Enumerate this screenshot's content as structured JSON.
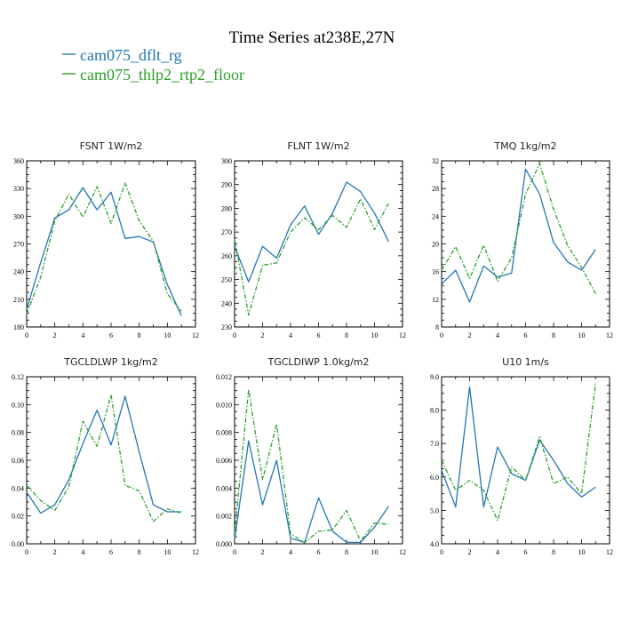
{
  "title": "Time Series at238E,27N",
  "legend": [
    {
      "label": "cam075_dflt_rg",
      "color": "#2377b4",
      "dash": "solid"
    },
    {
      "label": "cam075_thlp2_rtp2_floor",
      "color": "#2ca02c",
      "dash": "dashdot"
    }
  ],
  "chart_data": [
    {
      "type": "line",
      "title": "FSNT   1W/m2",
      "x": [
        0,
        1,
        2,
        3,
        4,
        5,
        6,
        7,
        8,
        9,
        10,
        11
      ],
      "xlim": [
        0,
        12
      ],
      "xticks": [
        "0",
        "2",
        "4",
        "6",
        "8",
        "10",
        "12"
      ],
      "ylim": [
        180,
        360
      ],
      "yticks": [
        "180",
        "210",
        "240",
        "270",
        "300",
        "330",
        "360"
      ],
      "series": [
        {
          "name": "cam075_dflt_rg",
          "values": [
            199,
            250,
            298,
            307,
            331,
            307,
            326,
            276,
            278,
            272,
            226,
            192
          ]
        },
        {
          "name": "cam075_thlp2_rtp2_floor",
          "values": [
            194,
            234,
            295,
            324,
            299,
            332,
            292,
            336,
            295,
            273,
            216,
            197
          ]
        }
      ]
    },
    {
      "type": "line",
      "title": "FLNT   1W/m2",
      "x": [
        0,
        1,
        2,
        3,
        4,
        5,
        6,
        7,
        8,
        9,
        10,
        11
      ],
      "xlim": [
        0,
        12
      ],
      "xticks": [
        "0",
        "2",
        "4",
        "6",
        "8",
        "10",
        "12"
      ],
      "ylim": [
        230,
        300
      ],
      "yticks": [
        "230",
        "240",
        "250",
        "260",
        "270",
        "280",
        "290",
        "300"
      ],
      "series": [
        {
          "name": "cam075_dflt_rg",
          "values": [
            264,
            249,
            264,
            259,
            273,
            281,
            269,
            278,
            291,
            287,
            278,
            266
          ]
        },
        {
          "name": "cam075_thlp2_rtp2_floor",
          "values": [
            267,
            235,
            256,
            257,
            270,
            276,
            271,
            277,
            272,
            284,
            271,
            282
          ]
        }
      ]
    },
    {
      "type": "line",
      "title": "TMQ   1kg/m2",
      "x": [
        0,
        1,
        2,
        3,
        4,
        5,
        6,
        7,
        8,
        9,
        10,
        11
      ],
      "xlim": [
        0,
        12
      ],
      "xticks": [
        "0",
        "2",
        "4",
        "6",
        "8",
        "10",
        "12"
      ],
      "ylim": [
        8,
        32
      ],
      "yticks": [
        "8",
        "12",
        "16",
        "20",
        "24",
        "28",
        "32"
      ],
      "series": [
        {
          "name": "cam075_dflt_rg",
          "values": [
            14.2,
            16.2,
            11.6,
            16.8,
            15.2,
            15.8,
            30.8,
            27.2,
            20.2,
            17.4,
            16.2,
            19.2
          ]
        },
        {
          "name": "cam075_thlp2_rtp2_floor",
          "values": [
            16.2,
            19.6,
            15.0,
            19.8,
            14.6,
            18.0,
            27.2,
            31.6,
            25.0,
            19.8,
            16.6,
            12.8
          ]
        }
      ]
    },
    {
      "type": "line",
      "title": "TGCLDLWP   1kg/m2",
      "x": [
        0,
        1,
        2,
        3,
        4,
        5,
        6,
        7,
        8,
        9,
        10,
        11
      ],
      "xlim": [
        0,
        12
      ],
      "xticks": [
        "0",
        "2",
        "4",
        "6",
        "8",
        "10",
        "12"
      ],
      "ylim": [
        0,
        0.12
      ],
      "yticks": [
        "0.00",
        "0.02",
        "0.04",
        "0.06",
        "0.08",
        "0.10",
        "0.12"
      ],
      "series": [
        {
          "name": "cam075_dflt_rg",
          "values": [
            0.037,
            0.022,
            0.028,
            0.046,
            0.072,
            0.096,
            0.071,
            0.106,
            0.066,
            0.028,
            0.023,
            0.023
          ]
        },
        {
          "name": "cam075_thlp2_rtp2_floor",
          "values": [
            0.042,
            0.031,
            0.024,
            0.041,
            0.088,
            0.07,
            0.107,
            0.042,
            0.038,
            0.016,
            0.025,
            0.022
          ]
        }
      ]
    },
    {
      "type": "line",
      "title": "TGCLDIWP   1.0kg/m2",
      "x": [
        0,
        1,
        2,
        3,
        4,
        5,
        6,
        7,
        8,
        9,
        10,
        11
      ],
      "xlim": [
        0,
        12
      ],
      "xticks": [
        "0",
        "2",
        "4",
        "6",
        "8",
        "10",
        "12"
      ],
      "ylim": [
        0,
        0.012
      ],
      "yticks": [
        "0.000",
        "0.002",
        "0.004",
        "0.006",
        "0.008",
        "0.010",
        "0.012"
      ],
      "series": [
        {
          "name": "cam075_dflt_rg",
          "values": [
            0.0003,
            0.0074,
            0.0028,
            0.006,
            0.0004,
            0.0001,
            0.0033,
            0.0009,
            0.0001,
            0.0001,
            0.0012,
            0.0027
          ]
        },
        {
          "name": "cam075_thlp2_rtp2_floor",
          "values": [
            0.0007,
            0.0111,
            0.0046,
            0.0086,
            0.0007,
            0.0001,
            0.0009,
            0.001,
            0.0024,
            0.0002,
            0.0015,
            0.0014
          ]
        }
      ]
    },
    {
      "type": "line",
      "title": "U10   1m/s",
      "x": [
        0,
        1,
        2,
        3,
        4,
        5,
        6,
        7,
        8,
        9,
        10,
        11
      ],
      "xlim": [
        0,
        12
      ],
      "xticks": [
        "0",
        "2",
        "4",
        "6",
        "8",
        "10",
        "12"
      ],
      "ylim": [
        4.0,
        9.0
      ],
      "yticks": [
        "4.0",
        "5.0",
        "6.0",
        "7.0",
        "8.0",
        "9.0"
      ],
      "series": [
        {
          "name": "cam075_dflt_rg",
          "values": [
            6.2,
            5.1,
            8.7,
            5.1,
            6.9,
            6.1,
            5.9,
            7.1,
            6.5,
            5.8,
            5.4,
            5.7
          ]
        },
        {
          "name": "cam075_thlp2_rtp2_floor",
          "values": [
            6.5,
            5.6,
            5.9,
            5.6,
            4.7,
            6.3,
            5.9,
            7.2,
            5.8,
            6.0,
            5.5,
            8.8
          ]
        }
      ]
    }
  ]
}
